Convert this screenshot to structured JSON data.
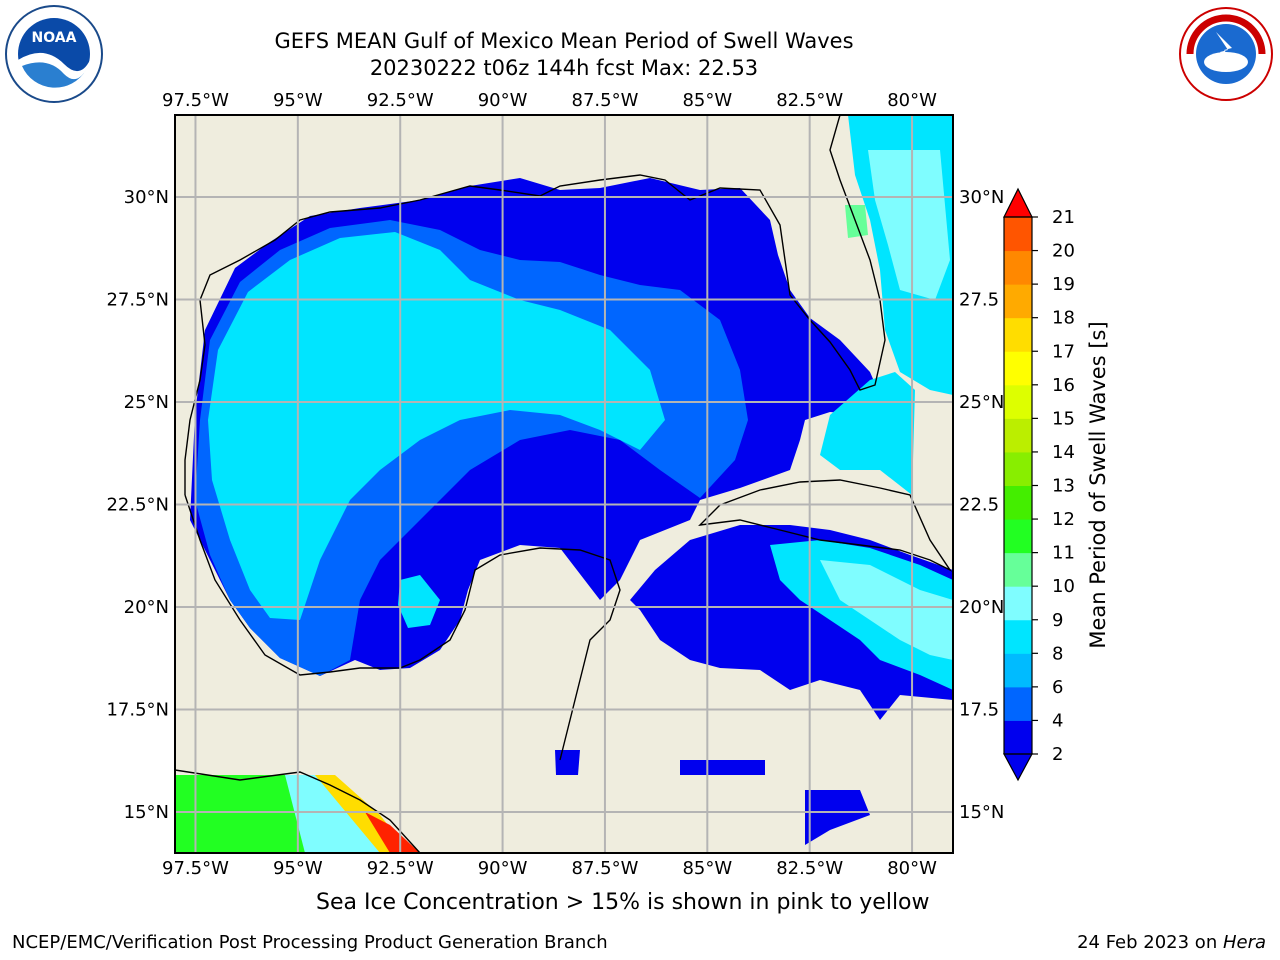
{
  "header": {
    "title": "GEFS MEAN Gulf of Mexico Mean Period of Swell Waves",
    "subtitle": "20230222 t06z 144h fcst   Max: 22.53"
  },
  "logos": {
    "left": "NOAA",
    "right": "NATIONAL WEATHER SERVICE"
  },
  "map": {
    "lon_labels": [
      "97.5°W",
      "95°W",
      "92.5°W",
      "90°W",
      "87.5°W",
      "85°W",
      "82.5°W",
      "80°W"
    ],
    "lat_labels": [
      "30°N",
      "27.5°N",
      "25°N",
      "22.5°N",
      "20°N",
      "17.5°N",
      "15°N"
    ],
    "lat_labels_right": [
      "30°N",
      "27.5",
      "25°N",
      "22.5",
      "20°N",
      "17.5",
      "15°N"
    ],
    "lon_range": [
      -98,
      -79
    ],
    "lat_range": [
      14,
      32
    ],
    "colors": {
      "land": "#efedde",
      "ocean_missing": "#ffffff",
      "grid": "#b4b4b4"
    }
  },
  "colorbar": {
    "label": "Mean Period of Swell Waves [s]",
    "ticks": [
      "2",
      "4",
      "6",
      "8",
      "9",
      "10",
      "11",
      "12",
      "13",
      "14",
      "15",
      "16",
      "17",
      "18",
      "19",
      "20",
      "21"
    ],
    "colors": [
      "#0000ee",
      "#0066ff",
      "#00bbff",
      "#00e5ff",
      "#7ffdff",
      "#66ff99",
      "#22ff22",
      "#44ee00",
      "#88ee00",
      "#bbee00",
      "#ddff00",
      "#ffff00",
      "#ffdd00",
      "#ffaa00",
      "#ff8800",
      "#ff5500",
      "#ff2200"
    ],
    "under_color": "#0000ee",
    "over_color": "#ff0000"
  },
  "notes": {
    "sea_ice": "Sea Ice Concentration > 15% is shown in pink to yellow"
  },
  "footer": {
    "left": "NCEP/EMC/Verification Post Processing Product Generation Branch",
    "right_text": "24 Feb 2023 on ",
    "right_italic": "Hera"
  }
}
